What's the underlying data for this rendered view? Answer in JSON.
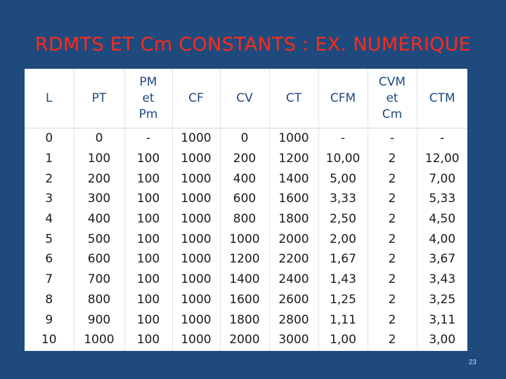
{
  "title": "RDMTS ET Cm CONSTANTS : EX. NUMÉRIQUE",
  "headers": [
    [
      "L"
    ],
    [
      "PT"
    ],
    [
      "PM",
      "et",
      "Pm"
    ],
    [
      "CF"
    ],
    [
      "CV"
    ],
    [
      "CT"
    ],
    [
      "CFM"
    ],
    [
      "CVM",
      "et",
      "Cm"
    ],
    [
      "CTM"
    ]
  ],
  "rows": [
    [
      "0",
      "0",
      "-",
      "1000",
      "0",
      "1000",
      "-",
      "-",
      "-"
    ],
    [
      "1",
      "100",
      "100",
      "1000",
      "200",
      "1200",
      "10,00",
      "2",
      "12,00"
    ],
    [
      "2",
      "200",
      "100",
      "1000",
      "400",
      "1400",
      "5,00",
      "2",
      "7,00"
    ],
    [
      "3",
      "300",
      "100",
      "1000",
      "600",
      "1600",
      "3,33",
      "2",
      "5,33"
    ],
    [
      "4",
      "400",
      "100",
      "1000",
      "800",
      "1800",
      "2,50",
      "2",
      "4,50"
    ],
    [
      "5",
      "500",
      "100",
      "1000",
      "1000",
      "2000",
      "2,00",
      "2",
      "4,00"
    ],
    [
      "6",
      "600",
      "100",
      "1000",
      "1200",
      "2200",
      "1,67",
      "2",
      "3,67"
    ],
    [
      "7",
      "700",
      "100",
      "1000",
      "1400",
      "2400",
      "1,43",
      "2",
      "3,43"
    ],
    [
      "8",
      "800",
      "100",
      "1000",
      "1600",
      "2600",
      "1,25",
      "2",
      "3,25"
    ],
    [
      "9",
      "900",
      "100",
      "1000",
      "1800",
      "2800",
      "1,11",
      "2",
      "3,11"
    ],
    [
      "10",
      "1000",
      "100",
      "1000",
      "2000",
      "3000",
      "1,00",
      "2",
      "3,00"
    ]
  ],
  "page_number": "23",
  "colors": {
    "background": "#1f4a7d",
    "title": "#ff2a1a",
    "header_text": "#1f4a7d",
    "body_text": "#1a1a1a"
  }
}
